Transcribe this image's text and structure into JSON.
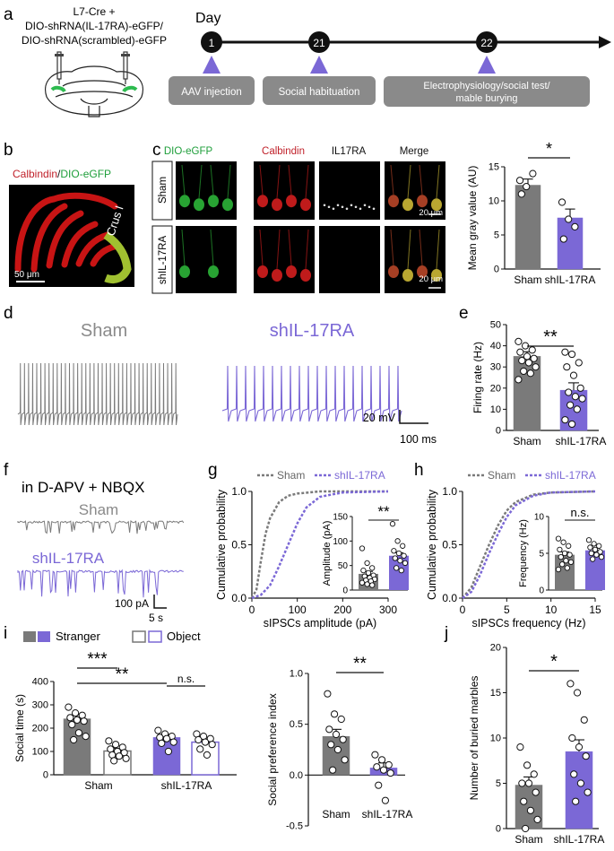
{
  "panels": {
    "a": "a",
    "b": "b",
    "c": "c",
    "d": "d",
    "e": "e",
    "f": "f",
    "g": "g",
    "h": "h",
    "i": "i",
    "j": "j"
  },
  "a": {
    "construct_lines": [
      "L7-Cre +",
      "DIO-shRNA(IL-17RA)-eGFP/",
      "DIO-shRNA(scrambled)-eGFP"
    ],
    "day_label": "Day",
    "days": [
      "1",
      "21",
      "22"
    ],
    "events": [
      "AAV injection",
      "Social habituation",
      "Electrophysiology/social test/",
      "mable burying"
    ]
  },
  "b": {
    "calbindin": "Calbindin",
    "slash": "/",
    "dio": "DIO-eGFP",
    "region": "Crus I",
    "scale": "50 μm"
  },
  "c": {
    "columns": [
      "DIO-eGFP",
      "Calbindin",
      "IL17RA",
      "Merge"
    ],
    "rows": [
      "Sham",
      "shIL-17RA"
    ],
    "scale": "20 μm",
    "chart": {
      "ylabel": "Mean gray value (AU)",
      "yticks": [
        "0",
        "5",
        "10",
        "15"
      ],
      "categories": [
        "Sham",
        "shIL-17RA"
      ],
      "sig": "*"
    }
  },
  "d": {
    "sham": "Sham",
    "sh": "shIL-17RA",
    "scale_v": "20 mV",
    "scale_t": "100 ms"
  },
  "e": {
    "ylabel": "Firing rate (Hz)",
    "yticks": [
      "0",
      "10",
      "20",
      "30",
      "40",
      "50"
    ],
    "categories": [
      "Sham",
      "shIL-17RA"
    ],
    "sig": "**"
  },
  "f": {
    "title": "in D-APV + NBQX",
    "sham": "Sham",
    "sh": "shIL-17RA",
    "scale_v": "100  pA",
    "scale_t": "5 s"
  },
  "g": {
    "legend": [
      "Sham",
      "shIL-17RA"
    ],
    "ylabel": "Cumulative probability",
    "xlabel": "sIPSCs amplitude (pA)",
    "yticks": [
      "0.0",
      "0.5",
      "1.0"
    ],
    "xticks": [
      "0",
      "100",
      "200",
      "300"
    ],
    "inset": {
      "ylabel": "Amplitude (pA)",
      "yticks": [
        "0",
        "50",
        "100",
        "150"
      ],
      "sig": "**"
    }
  },
  "h": {
    "legend": [
      "Sham",
      "shIL-17RA"
    ],
    "ylabel": "Cumulative probability",
    "xlabel": "sIPSCs frequency (Hz)",
    "yticks": [
      "0.0",
      "0.5",
      "1.0"
    ],
    "xticks": [
      "0",
      "5",
      "10",
      "15"
    ],
    "inset": {
      "ylabel": "Frequency (Hz)",
      "yticks": [
        "0",
        "5",
        "10"
      ],
      "sig": "n.s."
    }
  },
  "i": {
    "legend": [
      "Stranger",
      "Object"
    ],
    "ylabel": "Social time (s)",
    "yticks": [
      "0",
      "100",
      "200",
      "300",
      "400"
    ],
    "categories": [
      "Sham",
      "shIL-17RA"
    ],
    "sig_a": "***",
    "sig_b": "**",
    "sig_c": "n.s.",
    "index": {
      "ylabel": "Social preference index",
      "yticks": [
        "-0.5",
        "0.0",
        "0.5",
        "1.0"
      ],
      "categories": [
        "Sham",
        "shIL-17RA"
      ],
      "sig": "**"
    }
  },
  "j": {
    "ylabel": "Number of buried marbles",
    "yticks": [
      "0",
      "5",
      "10",
      "15",
      "20"
    ],
    "categories": [
      "Sham",
      "shIL-17RA"
    ],
    "sig": "*"
  },
  "colors": {
    "sham": "#7a7a7a",
    "sh": "#7b68d6",
    "red": "#d21e1e",
    "green": "#1e9e3a",
    "timeline": "#909090",
    "arrow": "#7b68d6"
  },
  "chart_data": [
    {
      "type": "bar",
      "panel": "c",
      "categories": [
        "Sham",
        "shIL-17RA"
      ],
      "values": [
        12.3,
        7.5
      ],
      "errors": [
        0.9,
        1.3
      ],
      "ylabel": "Mean gray value (AU)",
      "ylim": [
        0,
        15
      ],
      "points": [
        [
          13.0,
          12.1,
          14.0,
          11.0
        ],
        [
          9.8,
          7.3,
          6.2,
          4.4
        ]
      ]
    },
    {
      "type": "bar",
      "panel": "e",
      "categories": [
        "Sham",
        "shIL-17RA"
      ],
      "values": [
        35,
        19
      ],
      "errors": [
        2.2,
        3.5
      ],
      "ylabel": "Firing rate (Hz)",
      "ylim": [
        0,
        50
      ],
      "points": [
        [
          42,
          40,
          38,
          37,
          35,
          34,
          33,
          32,
          30,
          28,
          27,
          24
        ],
        [
          37,
          36,
          32,
          30,
          26,
          20,
          18,
          16,
          15,
          12,
          10,
          5,
          3
        ]
      ]
    },
    {
      "type": "line",
      "panel": "g",
      "series": [
        {
          "name": "Sham",
          "x": [
            0,
            10,
            20,
            30,
            40,
            60,
            80,
            100,
            150,
            300
          ],
          "y": [
            0,
            0.08,
            0.35,
            0.6,
            0.75,
            0.9,
            0.96,
            0.98,
            1,
            1
          ]
        },
        {
          "name": "shIL-17RA",
          "x": [
            0,
            20,
            40,
            60,
            80,
            100,
            120,
            150,
            200,
            300
          ],
          "y": [
            0,
            0.03,
            0.12,
            0.3,
            0.5,
            0.7,
            0.85,
            0.95,
            0.99,
            1
          ]
        }
      ],
      "xlabel": "sIPSCs amplitude (pA)",
      "ylabel": "Cumulative probability",
      "xlim": [
        0,
        300
      ],
      "ylim": [
        0,
        1
      ]
    },
    {
      "type": "bar",
      "panel": "g-inset",
      "categories": [
        "Sham",
        "shIL-17RA"
      ],
      "values": [
        33,
        70
      ],
      "errors": [
        5,
        6
      ],
      "ylabel": "Amplitude (pA)",
      "ylim": [
        0,
        150
      ],
      "points": [
        [
          85,
          55,
          45,
          40,
          35,
          30,
          28,
          25,
          22,
          20,
          18,
          15,
          12,
          10
        ],
        [
          135,
          100,
          90,
          80,
          75,
          70,
          65,
          60,
          55,
          45,
          40
        ]
      ]
    },
    {
      "type": "line",
      "panel": "h",
      "series": [
        {
          "name": "Sham",
          "x": [
            0,
            1,
            2,
            3,
            4,
            5,
            6,
            8,
            10,
            15
          ],
          "y": [
            0,
            0.1,
            0.3,
            0.5,
            0.68,
            0.82,
            0.9,
            0.97,
            0.99,
            1
          ]
        },
        {
          "name": "shIL-17RA",
          "x": [
            0,
            1,
            2,
            3,
            4,
            5,
            6,
            8,
            10,
            15
          ],
          "y": [
            0,
            0.06,
            0.22,
            0.42,
            0.6,
            0.76,
            0.87,
            0.96,
            0.99,
            1
          ]
        }
      ],
      "xlabel": "sIPSCs frequency (Hz)",
      "ylabel": "Cumulative probability",
      "xlim": [
        0,
        15
      ],
      "ylim": [
        0,
        1
      ]
    },
    {
      "type": "bar",
      "panel": "h-inset",
      "categories": [
        "Sham",
        "shIL-17RA"
      ],
      "values": [
        4.8,
        5.4
      ],
      "errors": [
        0.4,
        0.3
      ],
      "ylabel": "Frequency (Hz)",
      "ylim": [
        0,
        10
      ],
      "points": [
        [
          7,
          6.5,
          6,
          5.5,
          5,
          4.8,
          4.5,
          4,
          3.8,
          3.5,
          3,
          2.8
        ],
        [
          6.8,
          6.3,
          6,
          5.8,
          5.5,
          5.2,
          5,
          4.8,
          4.5,
          4.2
        ]
      ]
    },
    {
      "type": "bar",
      "panel": "i-time",
      "categories": [
        "Sham",
        "shIL-17RA"
      ],
      "series": [
        {
          "name": "Stranger",
          "values": [
            240,
            160
          ],
          "errors": [
            17,
            14
          ]
        },
        {
          "name": "Object",
          "values": [
            102,
            140
          ],
          "errors": [
            11,
            13
          ]
        }
      ],
      "ylabel": "Social time (s)",
      "ylim": [
        0,
        400
      ],
      "points": [
        [
          [
            290,
            265,
            255,
            245,
            235,
            230,
            215,
            180,
            165,
            150
          ],
          [
            145,
            130,
            118,
            110,
            100,
            95,
            85,
            80,
            70,
            60
          ]
        ],
        [
          [
            190,
            175,
            165,
            160,
            155,
            140,
            135,
            100
          ],
          [
            175,
            165,
            155,
            150,
            140,
            130,
            110,
            85
          ]
        ]
      ]
    },
    {
      "type": "bar",
      "panel": "i-index",
      "categories": [
        "Sham",
        "shIL-17RA"
      ],
      "values": [
        0.38,
        0.07
      ],
      "errors": [
        0.07,
        0.05
      ],
      "ylabel": "Social preference index",
      "ylim": [
        -0.5,
        1.0
      ],
      "points": [
        [
          0.8,
          0.6,
          0.55,
          0.45,
          0.4,
          0.35,
          0.3,
          0.25,
          0.15,
          0.05
        ],
        [
          0.2,
          0.15,
          0.1,
          0.08,
          0.05,
          0.02,
          -0.1,
          -0.25
        ]
      ]
    },
    {
      "type": "bar",
      "panel": "j",
      "categories": [
        "Sham",
        "shIL-17RA"
      ],
      "values": [
        4.8,
        8.5
      ],
      "errors": [
        0.9,
        1.3
      ],
      "ylabel": "Number of buried marbles",
      "ylim": [
        0,
        20
      ],
      "points": [
        [
          9,
          7,
          6,
          5,
          5,
          4,
          3,
          2,
          1,
          0
        ],
        [
          16,
          15,
          12,
          10,
          9,
          8,
          6,
          5,
          4,
          3
        ]
      ]
    }
  ]
}
